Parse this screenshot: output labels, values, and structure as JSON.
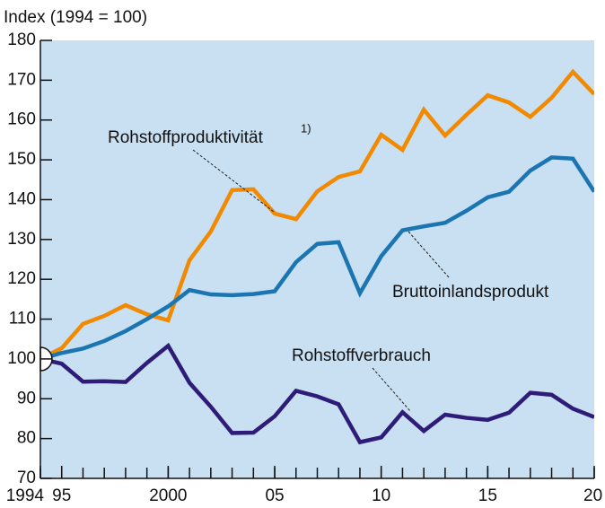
{
  "chart_data": {
    "type": "line",
    "y_label": "Index (1994 = 100)",
    "x": [
      1994,
      1995,
      1996,
      1997,
      1998,
      1999,
      2000,
      2001,
      2002,
      2003,
      2004,
      2005,
      2006,
      2007,
      2008,
      2009,
      2010,
      2011,
      2012,
      2013,
      2014,
      2015,
      2016,
      2017,
      2018,
      2019,
      2020
    ],
    "series": [
      {
        "name": "Rohstoffproduktivität",
        "footnote": "1)",
        "color": "#f18a00",
        "values": [
          100,
          102.7,
          108.8,
          110.8,
          113.5,
          111.2,
          109.7,
          124.8,
          132,
          142.4,
          142.6,
          136.5,
          135.1,
          142.1,
          145.7,
          147.1,
          156.3,
          152.5,
          162.6,
          156.1,
          161.3,
          166.2,
          164.4,
          160.8,
          165.6,
          172.1,
          166.5
        ]
      },
      {
        "name": "Bruttoinlandsprodukt",
        "color": "#1b75b1",
        "values": [
          100,
          101.5,
          102.6,
          104.5,
          107,
          110,
          113.2,
          117.3,
          116.2,
          116,
          116.3,
          117,
          124.3,
          128.9,
          129.3,
          116.5,
          125.8,
          132.3,
          133.3,
          134.2,
          137.2,
          140.6,
          142,
          147.3,
          150.6,
          150.3,
          142
        ]
      },
      {
        "name": "Rohstoffverbrauch",
        "color": "#2e1c78",
        "values": [
          100,
          98.8,
          94.3,
          94.4,
          94.2,
          99,
          103.3,
          94,
          88,
          81.4,
          81.5,
          85.6,
          92,
          90.6,
          88.6,
          79.1,
          80.3,
          86.6,
          81.9,
          86,
          85.2,
          84.7,
          86.5,
          91.5,
          91,
          87.5,
          85.4
        ]
      }
    ],
    "xlim": [
      1994,
      2020
    ],
    "xticks": [
      1994,
      {
        "value": 1995,
        "label": "95"
      },
      2000,
      {
        "value": 2005,
        "label": "05"
      },
      {
        "value": 2010,
        "label": "10"
      },
      {
        "value": 2015,
        "label": "15"
      },
      {
        "value": 2020,
        "label": "20"
      }
    ],
    "ylim": [
      70,
      180
    ],
    "yticks": [
      70,
      80,
      90,
      100,
      110,
      120,
      130,
      140,
      150,
      160,
      170,
      180
    ]
  }
}
